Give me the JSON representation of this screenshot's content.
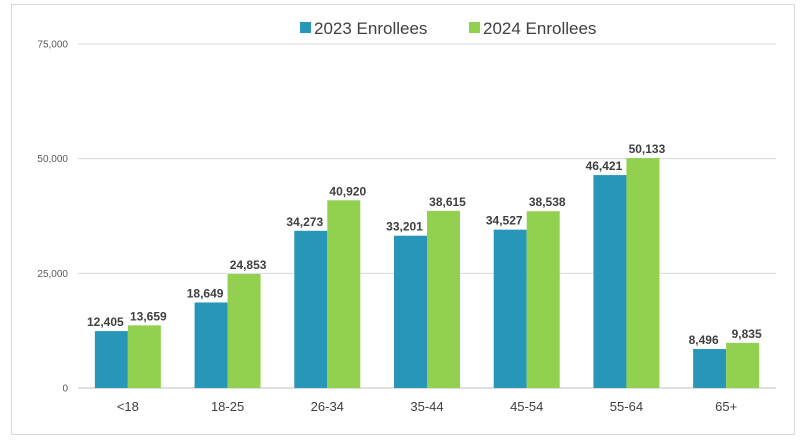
{
  "chart_data": {
    "type": "bar",
    "categories": [
      "<18",
      "18-25",
      "26-34",
      "35-44",
      "45-54",
      "55-64",
      "65+"
    ],
    "series": [
      {
        "name": "2023 Enrollees",
        "color": "#2896b8",
        "values": [
          12405,
          18649,
          34273,
          33201,
          34527,
          46421,
          8496
        ],
        "labels": [
          "12,405",
          "18,649",
          "34,273",
          "33,201",
          "34,527",
          "46,421",
          "8,496"
        ]
      },
      {
        "name": "2024 Enrollees",
        "color": "#92d050",
        "values": [
          13659,
          24853,
          40920,
          38615,
          38538,
          50133,
          9835
        ],
        "labels": [
          "13,659",
          "24,853",
          "40,920",
          "38,615",
          "38,538",
          "50,133",
          "9,835"
        ]
      }
    ],
    "ylim": [
      0,
      75000
    ],
    "yticks": [
      0,
      25000,
      50000,
      75000
    ],
    "ytick_labels": [
      "0",
      "25,000",
      "50,000",
      "75,000"
    ],
    "grid": true,
    "legend": "top-center",
    "title": "",
    "xlabel": "",
    "ylabel": ""
  }
}
